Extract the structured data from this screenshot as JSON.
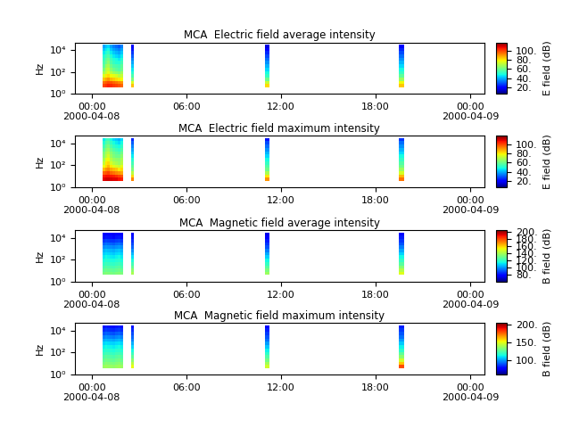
{
  "chart_data": [
    {
      "type": "heatmap",
      "title": "MCA  Electric field average intensity",
      "y_label": "Hz",
      "log": "y",
      "x_edges": [
        0.68,
        0.84,
        1.0,
        1.16,
        1.32,
        1.48,
        1.64,
        1.8,
        1.98,
        2.5,
        2.65,
        11.0,
        11.3,
        19.5,
        19.8
      ],
      "y_edges": [
        4,
        8,
        15,
        30,
        60,
        120,
        250,
        500,
        1000,
        2000,
        4000,
        8000,
        16000,
        32000
      ],
      "cells": [
        [
          100,
          102,
          104,
          103,
          101,
          100,
          98,
          96,
          null,
          85,
          null,
          82,
          null,
          84
        ],
        [
          95,
          97,
          99,
          98,
          96,
          94,
          92,
          90,
          null,
          75,
          null,
          72,
          null,
          78
        ],
        [
          85,
          88,
          90,
          86,
          84,
          82,
          80,
          78,
          null,
          62,
          null,
          60,
          null,
          66
        ],
        [
          75,
          80,
          82,
          78,
          76,
          74,
          70,
          72,
          null,
          55,
          null,
          52,
          null,
          58
        ],
        [
          68,
          72,
          76,
          70,
          66,
          64,
          62,
          66,
          null,
          50,
          null,
          48,
          null,
          52
        ],
        [
          62,
          70,
          72,
          64,
          60,
          58,
          56,
          60,
          null,
          46,
          null,
          44,
          null,
          48
        ],
        [
          58,
          66,
          68,
          60,
          56,
          55,
          54,
          58,
          null,
          42,
          null,
          40,
          null,
          44
        ],
        [
          55,
          60,
          64,
          56,
          52,
          50,
          50,
          54,
          null,
          38,
          null,
          36,
          null,
          40
        ],
        [
          52,
          58,
          60,
          54,
          50,
          48,
          46,
          50,
          null,
          34,
          null,
          32,
          null,
          36
        ],
        [
          50,
          54,
          56,
          50,
          46,
          44,
          42,
          46,
          null,
          30,
          null,
          28,
          null,
          32
        ],
        [
          46,
          50,
          52,
          46,
          42,
          40,
          38,
          42,
          null,
          26,
          null,
          24,
          null,
          28
        ],
        [
          42,
          46,
          48,
          42,
          38,
          36,
          34,
          38,
          null,
          22,
          null,
          20,
          null,
          24
        ],
        [
          38,
          42,
          44,
          38,
          34,
          32,
          30,
          34,
          null,
          18,
          null,
          16,
          null,
          20
        ]
      ],
      "xlim": [
        -1.07,
        24.9
      ],
      "xticks": [
        {
          "value": 0,
          "label": "00:00\n2000-04-08"
        },
        {
          "value": 6,
          "label": "06:00"
        },
        {
          "value": 12,
          "label": "12:00"
        },
        {
          "value": 18,
          "label": "18:00"
        },
        {
          "value": 24,
          "label": "00:00\n2000-04-09"
        }
      ],
      "ylim": [
        1,
        50000
      ],
      "yticks": [
        {
          "value": 1,
          "label": "10⁰"
        },
        {
          "value": 100,
          "label": "10²"
        },
        {
          "value": 10000,
          "label": "10⁴"
        }
      ],
      "colorbar_label": "E field (dB)",
      "colorbar_range": [
        6,
        118
      ],
      "colorbar_ticks": [
        {
          "value": 20,
          "label": "20."
        },
        {
          "value": 40,
          "label": "40."
        },
        {
          "value": 60,
          "label": "60."
        },
        {
          "value": 80,
          "label": "80."
        },
        {
          "value": 100,
          "label": "100."
        }
      ]
    },
    {
      "type": "heatmap",
      "title": "MCA  Electric field maximum intensity",
      "y_label": "Hz",
      "log": "y",
      "x_edges": [
        0.68,
        0.84,
        1.0,
        1.16,
        1.32,
        1.48,
        1.64,
        1.8,
        1.98,
        2.5,
        2.65,
        11.0,
        11.3,
        19.5,
        19.8
      ],
      "y_edges": [
        4,
        8,
        15,
        30,
        60,
        120,
        250,
        500,
        1000,
        2000,
        4000,
        8000,
        16000,
        32000
      ],
      "cells": [
        [
          108,
          110,
          110,
          109,
          108,
          108,
          106,
          104,
          null,
          92,
          null,
          90,
          null,
          94
        ],
        [
          104,
          106,
          106,
          105,
          104,
          102,
          100,
          98,
          null,
          82,
          null,
          80,
          null,
          86
        ],
        [
          96,
          98,
          100,
          96,
          94,
          92,
          90,
          88,
          null,
          70,
          null,
          68,
          null,
          74
        ],
        [
          86,
          90,
          92,
          88,
          86,
          84,
          80,
          82,
          null,
          62,
          null,
          60,
          null,
          66
        ],
        [
          78,
          82,
          86,
          80,
          76,
          74,
          72,
          76,
          null,
          58,
          null,
          56,
          null,
          60
        ],
        [
          72,
          80,
          82,
          74,
          70,
          68,
          66,
          70,
          null,
          54,
          null,
          52,
          null,
          56
        ],
        [
          68,
          76,
          78,
          70,
          66,
          65,
          64,
          68,
          null,
          50,
          null,
          48,
          null,
          52
        ],
        [
          64,
          70,
          74,
          66,
          62,
          60,
          60,
          64,
          null,
          46,
          null,
          44,
          null,
          48
        ],
        [
          62,
          68,
          70,
          64,
          60,
          58,
          56,
          60,
          null,
          42,
          null,
          40,
          null,
          44
        ],
        [
          58,
          64,
          66,
          60,
          56,
          54,
          52,
          56,
          null,
          38,
          null,
          36,
          null,
          40
        ],
        [
          54,
          60,
          62,
          56,
          52,
          50,
          48,
          52,
          null,
          34,
          null,
          32,
          null,
          36
        ],
        [
          50,
          56,
          58,
          52,
          48,
          46,
          44,
          48,
          null,
          30,
          null,
          28,
          null,
          32
        ],
        [
          46,
          52,
          54,
          48,
          44,
          42,
          40,
          44,
          null,
          24,
          null,
          22,
          null,
          26
        ]
      ],
      "xlim": [
        -1.07,
        24.9
      ],
      "xticks": [
        {
          "value": 0,
          "label": "00:00\n2000-04-08"
        },
        {
          "value": 6,
          "label": "06:00"
        },
        {
          "value": 12,
          "label": "12:00"
        },
        {
          "value": 18,
          "label": "18:00"
        },
        {
          "value": 24,
          "label": "00:00\n2000-04-09"
        }
      ],
      "ylim": [
        1,
        50000
      ],
      "yticks": [
        {
          "value": 1,
          "label": "10⁰"
        },
        {
          "value": 100,
          "label": "10²"
        },
        {
          "value": 10000,
          "label": "10⁴"
        }
      ],
      "colorbar_label": "E field (dB)",
      "colorbar_range": [
        6,
        118
      ],
      "colorbar_ticks": [
        {
          "value": 20,
          "label": "20."
        },
        {
          "value": 40,
          "label": "40."
        },
        {
          "value": 60,
          "label": "60."
        },
        {
          "value": 80,
          "label": "80."
        },
        {
          "value": 100,
          "label": "100."
        }
      ]
    },
    {
      "type": "heatmap",
      "title": "MCA  Magnetic field average intensity",
      "y_label": "Hz",
      "log": "y",
      "x_edges": [
        0.68,
        0.84,
        1.0,
        1.16,
        1.32,
        1.48,
        1.64,
        1.8,
        1.98,
        2.5,
        2.65,
        11.0,
        11.3,
        19.5,
        19.8
      ],
      "y_edges": [
        4,
        8,
        15,
        30,
        60,
        120,
        250,
        500,
        1000,
        2000,
        4000,
        8000,
        16000,
        32000
      ],
      "cells": [
        [
          132,
          134,
          133,
          132,
          131,
          133,
          134,
          132,
          null,
          140,
          null,
          138,
          null,
          150
        ],
        [
          128,
          130,
          129,
          128,
          127,
          129,
          130,
          128,
          null,
          135,
          null,
          132,
          null,
          142
        ],
        [
          124,
          126,
          125,
          124,
          123,
          125,
          126,
          124,
          null,
          128,
          null,
          126,
          null,
          134
        ],
        [
          120,
          122,
          121,
          120,
          119,
          121,
          122,
          120,
          null,
          122,
          null,
          120,
          null,
          126
        ],
        [
          116,
          118,
          117,
          116,
          115,
          117,
          118,
          116,
          null,
          116,
          null,
          114,
          null,
          120
        ],
        [
          112,
          114,
          113,
          112,
          111,
          113,
          114,
          112,
          null,
          110,
          null,
          108,
          null,
          114
        ],
        [
          108,
          110,
          109,
          108,
          107,
          109,
          110,
          108,
          null,
          104,
          null,
          102,
          null,
          108
        ],
        [
          104,
          106,
          105,
          104,
          103,
          105,
          106,
          104,
          null,
          98,
          null,
          96,
          null,
          102
        ],
        [
          98,
          100,
          99,
          98,
          97,
          99,
          100,
          98,
          null,
          92,
          null,
          90,
          null,
          96
        ],
        [
          92,
          94,
          93,
          92,
          91,
          93,
          94,
          92,
          null,
          88,
          null,
          86,
          null,
          90
        ],
        [
          86,
          88,
          87,
          86,
          85,
          87,
          88,
          86,
          null,
          84,
          null,
          82,
          null,
          86
        ],
        [
          80,
          82,
          81,
          80,
          79,
          81,
          82,
          80,
          null,
          80,
          null,
          78,
          null,
          82
        ],
        [
          76,
          78,
          77,
          76,
          75,
          77,
          78,
          76,
          null,
          76,
          null,
          74,
          null,
          78
        ]
      ],
      "xlim": [
        -1.07,
        24.9
      ],
      "xticks": [
        {
          "value": 0,
          "label": "00:00\n2000-04-08"
        },
        {
          "value": 6,
          "label": "06:00"
        },
        {
          "value": 12,
          "label": "12:00"
        },
        {
          "value": 18,
          "label": "18:00"
        },
        {
          "value": 24,
          "label": "00:00\n2000-04-09"
        }
      ],
      "ylim": [
        1,
        50000
      ],
      "yticks": [
        {
          "value": 1,
          "label": "10⁰"
        },
        {
          "value": 100,
          "label": "10²"
        },
        {
          "value": 10000,
          "label": "10⁴"
        }
      ],
      "colorbar_label": "B field (dB)",
      "colorbar_range": [
        60,
        205
      ],
      "colorbar_ticks": [
        {
          "value": 80,
          "label": "80."
        },
        {
          "value": 100,
          "label": "100."
        },
        {
          "value": 120,
          "label": "120."
        },
        {
          "value": 140,
          "label": "140."
        },
        {
          "value": 160,
          "label": "160."
        },
        {
          "value": 180,
          "label": "180."
        },
        {
          "value": 200,
          "label": "200."
        }
      ]
    },
    {
      "type": "heatmap",
      "title": "MCA  Magnetic field maximum intensity",
      "y_label": "Hz",
      "log": "y",
      "x_edges": [
        0.68,
        0.84,
        1.0,
        1.16,
        1.32,
        1.48,
        1.64,
        1.8,
        1.98,
        2.5,
        2.65,
        11.0,
        11.3,
        19.5,
        19.8
      ],
      "y_edges": [
        4,
        8,
        15,
        30,
        60,
        120,
        250,
        500,
        1000,
        2000,
        4000,
        8000,
        16000,
        32000
      ],
      "cells": [
        [
          136,
          138,
          137,
          136,
          135,
          137,
          138,
          136,
          null,
          150,
          null,
          146,
          null,
          178
        ],
        [
          132,
          134,
          133,
          132,
          131,
          133,
          134,
          132,
          null,
          142,
          null,
          138,
          null,
          160
        ],
        [
          128,
          130,
          129,
          128,
          127,
          129,
          130,
          128,
          null,
          134,
          null,
          130,
          null,
          146
        ],
        [
          124,
          126,
          125,
          124,
          123,
          125,
          126,
          124,
          null,
          126,
          null,
          124,
          null,
          134
        ],
        [
          120,
          122,
          121,
          120,
          119,
          121,
          122,
          120,
          null,
          120,
          null,
          118,
          null,
          126
        ],
        [
          116,
          118,
          117,
          116,
          115,
          117,
          118,
          116,
          null,
          114,
          null,
          112,
          null,
          118
        ],
        [
          112,
          114,
          113,
          112,
          111,
          113,
          114,
          112,
          null,
          108,
          null,
          106,
          null,
          112
        ],
        [
          108,
          110,
          109,
          108,
          107,
          109,
          110,
          108,
          null,
          102,
          null,
          100,
          null,
          106
        ],
        [
          102,
          104,
          103,
          102,
          101,
          103,
          104,
          102,
          null,
          96,
          null,
          94,
          null,
          100
        ],
        [
          96,
          98,
          97,
          96,
          95,
          97,
          98,
          96,
          null,
          92,
          null,
          90,
          null,
          94
        ],
        [
          90,
          92,
          91,
          90,
          89,
          91,
          92,
          90,
          null,
          88,
          null,
          86,
          null,
          90
        ],
        [
          84,
          86,
          85,
          84,
          83,
          85,
          86,
          84,
          null,
          84,
          null,
          82,
          null,
          86
        ],
        [
          80,
          82,
          81,
          80,
          79,
          81,
          82,
          80,
          null,
          80,
          null,
          78,
          null,
          82
        ]
      ],
      "xlim": [
        -1.07,
        24.9
      ],
      "xticks": [
        {
          "value": 0,
          "label": "00:00\n2000-04-08"
        },
        {
          "value": 6,
          "label": "06:00"
        },
        {
          "value": 12,
          "label": "12:00"
        },
        {
          "value": 18,
          "label": "18:00"
        },
        {
          "value": 24,
          "label": "00:00\n2000-04-09"
        }
      ],
      "ylim": [
        1,
        50000
      ],
      "yticks": [
        {
          "value": 1,
          "label": "10⁰"
        },
        {
          "value": 100,
          "label": "10²"
        },
        {
          "value": 10000,
          "label": "10⁴"
        }
      ],
      "colorbar_label": "B field (dB)",
      "colorbar_range": [
        60,
        203
      ],
      "colorbar_ticks": [
        {
          "value": 100,
          "label": "100."
        },
        {
          "value": 150,
          "label": "150."
        },
        {
          "value": 200,
          "label": "200."
        }
      ]
    }
  ]
}
